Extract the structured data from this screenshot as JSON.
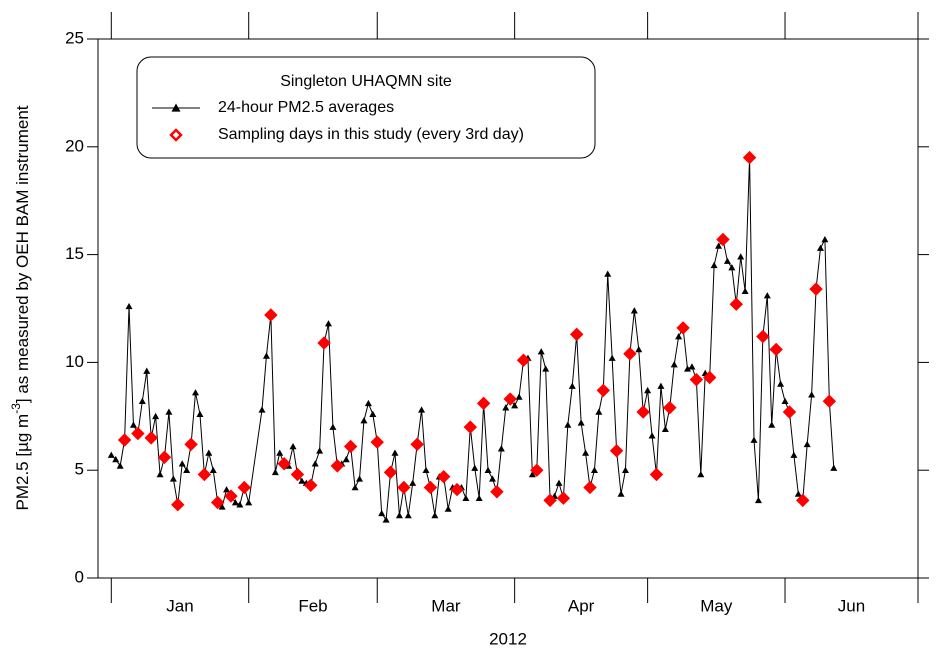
{
  "chart_data": {
    "type": "line",
    "legend_title": "Singleton UHAQMN site",
    "x_label": "2012",
    "y_label": [
      "PM2.5 [µg m",
      "-3",
      "] as measured by OEH BAM instrument"
    ],
    "months": [
      "Jan",
      "Feb",
      "Mar",
      "Apr",
      "May",
      "Jun"
    ],
    "month_ticks": [
      1,
      32,
      61,
      92,
      122,
      153,
      183
    ],
    "xlim": [
      -2,
      183
    ],
    "ylim": [
      0,
      25
    ],
    "yticks": [
      0,
      5,
      10,
      15,
      20,
      25
    ],
    "legend": "upper left",
    "series": [
      {
        "name": "24-hour PM2.5 averages",
        "color": "#000000",
        "marker": "triangle",
        "x": [
          1,
          2,
          3,
          4,
          5,
          6,
          7,
          8,
          9,
          10,
          11,
          12,
          13,
          14,
          15,
          16,
          17,
          18,
          19,
          20,
          21,
          22,
          23,
          24,
          25,
          26,
          27,
          28,
          29,
          30,
          31,
          32,
          35,
          36,
          37,
          38,
          39,
          40,
          41,
          42,
          43,
          44,
          45,
          46,
          47,
          48,
          49,
          50,
          51,
          52,
          53,
          54,
          55,
          56,
          57,
          58,
          59,
          60,
          61,
          62,
          63,
          64,
          65,
          66,
          67,
          68,
          69,
          70,
          71,
          72,
          73,
          74,
          75,
          76,
          77,
          78,
          79,
          80,
          81,
          82,
          83,
          84,
          85,
          86,
          87,
          88,
          89,
          90,
          91,
          92,
          93,
          94,
          95,
          96,
          97,
          98,
          99,
          100,
          101,
          102,
          103,
          104,
          105,
          106,
          107,
          108,
          109,
          110,
          111,
          112,
          113,
          114,
          115,
          116,
          117,
          118,
          119,
          120,
          121,
          122,
          123,
          124,
          125,
          126,
          127,
          128,
          129,
          130,
          131,
          132,
          133,
          134,
          135,
          136,
          137,
          138,
          139,
          140,
          141,
          142,
          143,
          144,
          145,
          146,
          147,
          148,
          149,
          150,
          151,
          152,
          153,
          154,
          155,
          156,
          157,
          158,
          159,
          160,
          161,
          162,
          163,
          164
        ],
        "values": [
          5.7,
          5.5,
          5.2,
          6.4,
          12.6,
          7.1,
          6.7,
          8.2,
          9.6,
          6.5,
          7.5,
          4.8,
          5.6,
          7.7,
          4.6,
          3.4,
          5.3,
          5.0,
          6.2,
          8.6,
          7.6,
          4.8,
          5.8,
          5.0,
          3.5,
          3.3,
          4.1,
          3.8,
          3.5,
          3.4,
          4.2,
          3.5,
          7.8,
          10.3,
          12.2,
          4.9,
          5.8,
          5.3,
          5.2,
          6.1,
          4.8,
          4.5,
          4.4,
          4.3,
          5.3,
          5.9,
          10.9,
          11.8,
          7.0,
          5.2,
          5.3,
          5.5,
          6.1,
          4.2,
          4.6,
          7.3,
          8.1,
          7.6,
          6.3,
          3.0,
          2.7,
          4.9,
          5.8,
          2.9,
          4.2,
          2.9,
          4.4,
          6.2,
          7.8,
          5.0,
          4.2,
          2.9,
          4.7,
          4.7,
          3.2,
          4.2,
          4.1,
          4.2,
          3.7,
          7.0,
          5.1,
          3.7,
          8.1,
          5.0,
          4.6,
          4.0,
          6.0,
          7.9,
          8.3,
          8.0,
          8.4,
          10.1,
          10.2,
          4.8,
          5.0,
          10.5,
          9.7,
          3.6,
          3.8,
          4.4,
          3.7,
          7.1,
          8.9,
          11.3,
          7.2,
          5.8,
          4.2,
          5.0,
          7.7,
          8.7,
          14.1,
          10.2,
          5.9,
          3.9,
          5.0,
          10.4,
          12.4,
          10.6,
          7.7,
          8.7,
          6.6,
          4.8,
          8.9,
          6.9,
          7.9,
          9.9,
          11.2,
          11.6,
          9.7,
          9.8,
          9.2,
          4.8,
          9.5,
          9.3,
          14.5,
          15.4,
          15.7,
          14.7,
          14.4,
          12.7,
          14.9,
          13.3,
          19.5,
          6.4,
          3.6,
          11.2,
          13.1,
          7.1,
          10.6,
          9.0,
          8.2,
          7.7,
          5.7,
          3.9,
          3.6,
          6.2,
          8.5,
          13.4,
          15.3,
          15.7,
          8.2,
          5.1
        ]
      },
      {
        "name": "Sampling days in this study (every 3rd day)",
        "color": "#ff0000",
        "marker": "diamond",
        "x": [
          4,
          7,
          10,
          13,
          16,
          19,
          22,
          25,
          28,
          31,
          37,
          40,
          43,
          46,
          49,
          52,
          55,
          61,
          64,
          67,
          70,
          73,
          76,
          79,
          82,
          85,
          88,
          91,
          94,
          97,
          100,
          103,
          106,
          109,
          112,
          115,
          118,
          121,
          124,
          127,
          130,
          133,
          136,
          139,
          142,
          145,
          148,
          151,
          154,
          157,
          160,
          163
        ],
        "values": [
          6.4,
          6.7,
          6.5,
          5.6,
          3.4,
          6.2,
          4.8,
          3.5,
          3.8,
          4.2,
          12.2,
          5.3,
          4.8,
          4.3,
          10.9,
          5.2,
          6.1,
          6.3,
          4.9,
          4.2,
          6.2,
          4.2,
          4.7,
          4.1,
          7.0,
          8.1,
          4.0,
          8.3,
          10.1,
          5.0,
          3.6,
          3.7,
          11.3,
          4.2,
          8.7,
          5.9,
          10.4,
          7.7,
          4.8,
          7.9,
          11.6,
          9.2,
          9.3,
          15.7,
          12.7,
          19.5,
          11.2,
          10.6,
          7.7,
          3.6,
          13.4,
          8.2
        ]
      }
    ]
  }
}
